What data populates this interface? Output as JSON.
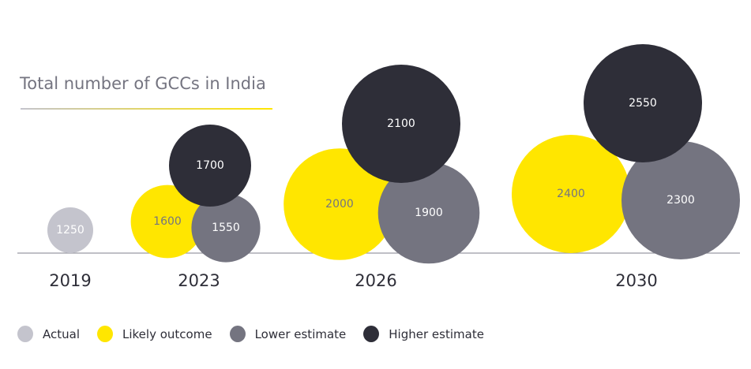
{
  "chart_data": {
    "type": "bubble",
    "title": "Total number of GCCs in India",
    "categories": [
      "2019",
      "2023",
      "2026",
      "2030"
    ],
    "series": [
      {
        "name": "Actual",
        "color": "#c4c4cd",
        "values": [
          1250,
          null,
          null,
          null
        ]
      },
      {
        "name": "Likely outcome",
        "color": "#ffe600",
        "values": [
          null,
          1600,
          2000,
          2400
        ]
      },
      {
        "name": "Lower estimate",
        "color": "#747480",
        "values": [
          null,
          1550,
          1900,
          2300
        ]
      },
      {
        "name": "Higher estimate",
        "color": "#2e2e38",
        "values": [
          null,
          1700,
          2100,
          2550
        ]
      }
    ],
    "legend": "bottom-left",
    "grid": false
  }
}
